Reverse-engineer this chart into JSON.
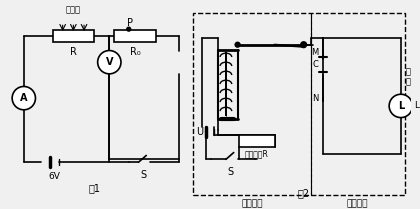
{
  "fig1_label": "图1",
  "fig2_label": "图2",
  "control_label": "控制电路",
  "work_label": "工作电路",
  "voltage": "6V",
  "switch_label": "S",
  "R_label": "R",
  "R0_label": "R₀",
  "P_label": "P",
  "U_label": "U",
  "photores_label": "光敏电阻R",
  "light_label": "照射光",
  "A_label": "A",
  "V_label": "V",
  "M_label": "M",
  "N_label": "N",
  "C_label": "C",
  "L_label": "L",
  "power_label": "电\n源",
  "bg_color": "#f0f0f0",
  "line_color": "#000000",
  "box_bg": "#ffffff"
}
